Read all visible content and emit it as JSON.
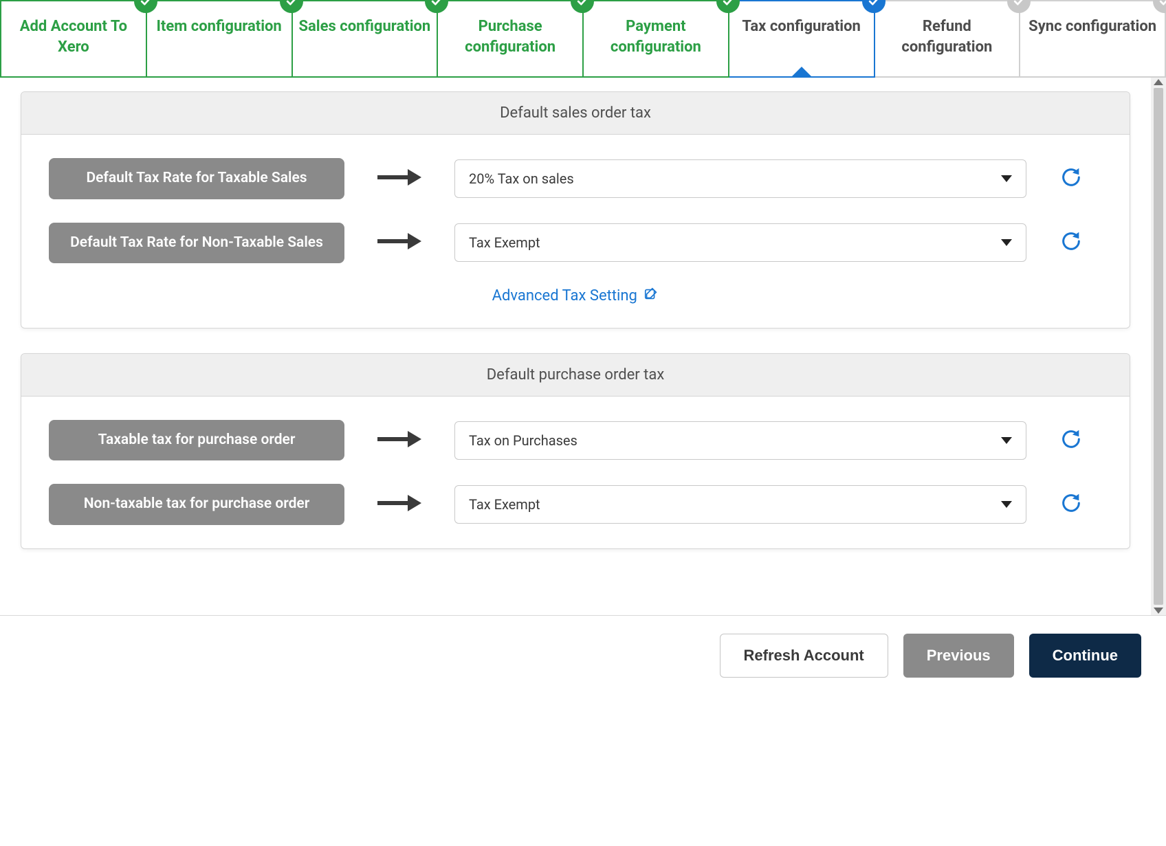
{
  "colors": {
    "complete": "#2c9f45",
    "active": "#1976d2",
    "upcoming": "#c8c8c8",
    "text_muted": "#4d4d4d",
    "pill_bg": "#8a8a8a",
    "primary_btn": "#0e2a47",
    "link": "#1976d2"
  },
  "steps": [
    {
      "label": "Add Account To Xero",
      "state": "complete"
    },
    {
      "label": "Item configuration",
      "state": "complete"
    },
    {
      "label": "Sales configuration",
      "state": "complete"
    },
    {
      "label": "Purchase configuration",
      "state": "complete"
    },
    {
      "label": "Payment configuration",
      "state": "complete"
    },
    {
      "label": "Tax configuration",
      "state": "active"
    },
    {
      "label": "Refund configuration",
      "state": "upcoming"
    },
    {
      "label": "Sync configuration",
      "state": "upcoming"
    }
  ],
  "cards": {
    "sales": {
      "header": "Default sales order tax",
      "rows": [
        {
          "label": "Default Tax Rate for Taxable Sales",
          "value": "20% Tax on sales"
        },
        {
          "label": "Default Tax Rate for Non-Taxable Sales",
          "value": "Tax Exempt"
        }
      ],
      "advanced_link": "Advanced Tax Setting"
    },
    "purchase": {
      "header": "Default purchase order tax",
      "rows": [
        {
          "label": "Taxable tax for purchase order",
          "value": "Tax on Purchases"
        },
        {
          "label": "Non-taxable tax for purchase order",
          "value": "Tax Exempt"
        }
      ]
    }
  },
  "footer": {
    "refresh": "Refresh Account",
    "previous": "Previous",
    "continue": "Continue"
  }
}
